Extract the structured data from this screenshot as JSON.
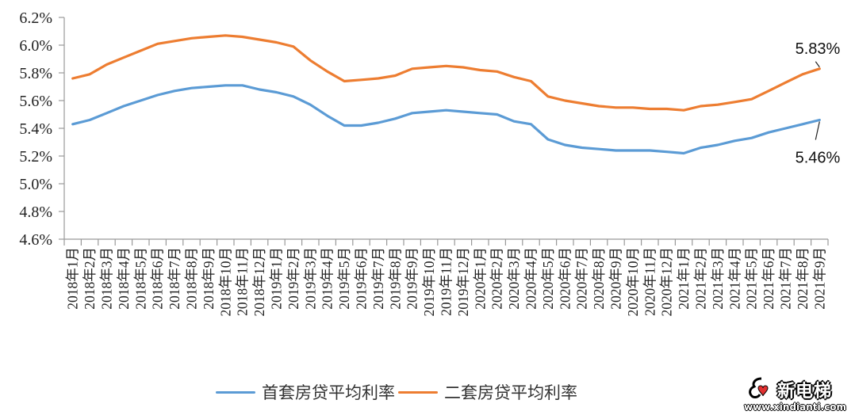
{
  "chart_data": {
    "type": "line",
    "title": "",
    "xlabel": "",
    "ylabel": "",
    "ylim": [
      4.6,
      6.2
    ],
    "yticks": [
      "4.6%",
      "4.8%",
      "5.0%",
      "5.2%",
      "5.4%",
      "5.6%",
      "5.8%",
      "6.0%",
      "6.2%"
    ],
    "ytick_values": [
      4.6,
      4.8,
      5.0,
      5.2,
      5.4,
      5.6,
      5.8,
      6.0,
      6.2
    ],
    "grid": false,
    "legend_position": "bottom",
    "categories": [
      "2018年1月",
      "2018年2月",
      "2018年3月",
      "2018年4月",
      "2018年5月",
      "2018年6月",
      "2018年7月",
      "2018年8月",
      "2018年9月",
      "2018年10月",
      "2018年11月",
      "2018年12月",
      "2019年1月",
      "2019年2月",
      "2019年3月",
      "2019年4月",
      "2019年5月",
      "2019年6月",
      "2019年7月",
      "2019年8月",
      "2019年9月",
      "2019年10月",
      "2019年11月",
      "2019年12月",
      "2020年1月",
      "2020年2月",
      "2020年3月",
      "2020年4月",
      "2020年5月",
      "2020年6月",
      "2020年7月",
      "2020年8月",
      "2020年9月",
      "2020年10月",
      "2020年11月",
      "2020年12月",
      "2021年1月",
      "2021年2月",
      "2021年3月",
      "2021年4月",
      "2021年5月",
      "2021年6月",
      "2021年7月",
      "2021年8月",
      "2021年9月"
    ],
    "series": [
      {
        "name": "首套房贷平均利率",
        "color": "#5B9BD5",
        "values": [
          5.43,
          5.46,
          5.51,
          5.56,
          5.6,
          5.64,
          5.67,
          5.69,
          5.7,
          5.71,
          5.71,
          5.68,
          5.66,
          5.63,
          5.57,
          5.49,
          5.42,
          5.42,
          5.44,
          5.47,
          5.51,
          5.52,
          5.53,
          5.52,
          5.51,
          5.5,
          5.45,
          5.43,
          5.32,
          5.28,
          5.26,
          5.25,
          5.24,
          5.24,
          5.24,
          5.23,
          5.22,
          5.26,
          5.28,
          5.31,
          5.33,
          5.37,
          5.4,
          5.43,
          5.46
        ]
      },
      {
        "name": "二套房贷平均利率",
        "color": "#ED7D31",
        "values": [
          5.76,
          5.79,
          5.86,
          5.91,
          5.96,
          6.01,
          6.03,
          6.05,
          6.06,
          6.07,
          6.06,
          6.04,
          6.02,
          5.99,
          5.89,
          5.81,
          5.74,
          5.75,
          5.76,
          5.78,
          5.83,
          5.84,
          5.85,
          5.84,
          5.82,
          5.81,
          5.77,
          5.74,
          5.63,
          5.6,
          5.58,
          5.56,
          5.55,
          5.55,
          5.54,
          5.54,
          5.53,
          5.56,
          5.57,
          5.59,
          5.61,
          5.67,
          5.73,
          5.79,
          5.83
        ]
      }
    ],
    "annotations": [
      {
        "series": 1,
        "index": 44,
        "text": "5.83%"
      },
      {
        "series": 0,
        "index": 44,
        "text": "5.46%"
      }
    ]
  },
  "legend": {
    "items": [
      {
        "label": "首套房贷平均利率",
        "color": "#5B9BD5"
      },
      {
        "label": "二套房贷平均利率",
        "color": "#ED7D31"
      }
    ]
  },
  "watermark": {
    "title": "新电梯",
    "url": "www.xindianti.com",
    "accent": "#E03030"
  }
}
